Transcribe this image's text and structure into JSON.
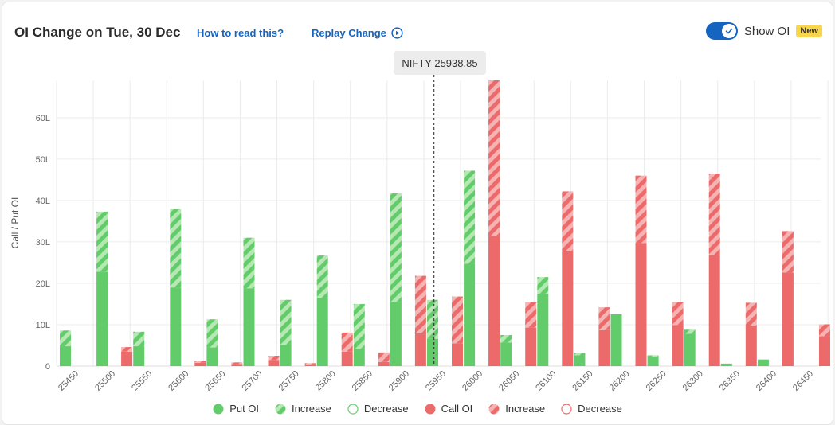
{
  "header": {
    "title": "OI Change on Tue, 30 Dec",
    "how_to_read": "How to read this?",
    "replay": "Replay Change",
    "show_oi_label": "Show OI",
    "show_oi_on": true,
    "new_badge": "New"
  },
  "colors": {
    "put": "#62cc6a",
    "put_increase_light": "#b6e8b3",
    "call": "#ec6a6a",
    "call_increase_light": "#f5b3b3",
    "accent": "#1565c0",
    "badge": "#f9d54a"
  },
  "icons": {
    "replay": "play-circle-icon",
    "toggle_knob": "check-icon"
  },
  "chart_data": {
    "type": "bar",
    "ylabel": "Call / Put OI",
    "ylim": [
      0,
      69
    ],
    "y_ticks": [
      0,
      10,
      20,
      30,
      40,
      50,
      60
    ],
    "y_tick_labels": [
      "0",
      "10L",
      "20L",
      "30L",
      "40L",
      "50L",
      "60L"
    ],
    "grid": true,
    "spot_label": "NIFTY 25938.85",
    "spot_value": 25938.85,
    "categories": [
      "25450",
      "25500",
      "25550",
      "25600",
      "25650",
      "25700",
      "25750",
      "25800",
      "25850",
      "25900",
      "25950",
      "26000",
      "26050",
      "26100",
      "26150",
      "26200",
      "26250",
      "26300",
      "26350",
      "26400",
      "26450"
    ],
    "series": [
      {
        "name": "Put OI",
        "values": [
          4.8,
          22.8,
          4.8,
          19.0,
          4.5,
          18.8,
          5.2,
          16.5,
          4.2,
          15.5,
          6.6,
          24.7,
          5.7,
          17.5,
          2.6,
          12.5,
          2.3,
          7.8,
          0.6,
          1.6,
          0
        ]
      },
      {
        "name": "Put OI Increase",
        "values": [
          3.8,
          14.5,
          3.5,
          19.0,
          6.8,
          12.2,
          10.8,
          10.2,
          10.8,
          26.2,
          9.4,
          22.5,
          1.8,
          4.0,
          0.6,
          0,
          0.3,
          1.0,
          0,
          0,
          0
        ]
      },
      {
        "name": "Call OI",
        "values": [
          0,
          3.5,
          0,
          0.8,
          0.5,
          1.5,
          0.4,
          3.5,
          1.0,
          7.9,
          5.5,
          31.5,
          9.3,
          27.7,
          8.7,
          29.7,
          9.9,
          26.8,
          9.8,
          22.6,
          7.2
        ]
      },
      {
        "name": "Call OI Increase",
        "values": [
          0,
          1.1,
          0,
          0.5,
          0.4,
          1.0,
          0.3,
          4.6,
          2.3,
          13.9,
          11.3,
          37.5,
          6.1,
          14.5,
          5.5,
          16.3,
          5.6,
          19.7,
          5.5,
          10.0,
          2.9
        ]
      }
    ],
    "legend": [
      "Put OI",
      "Increase",
      "Decrease",
      "Call OI",
      "Increase",
      "Decrease"
    ],
    "legend_position": "bottom"
  }
}
